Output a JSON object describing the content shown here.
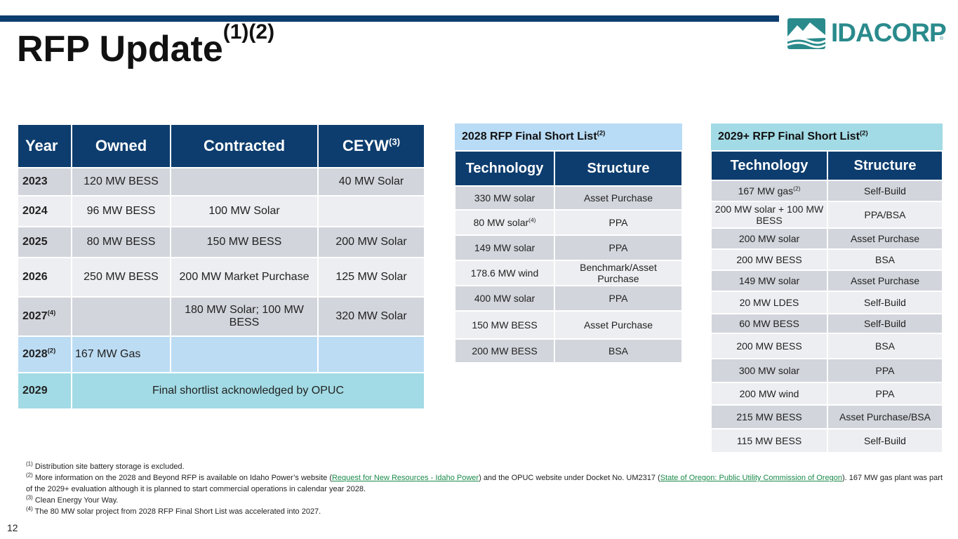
{
  "title": {
    "text": "RFP Update",
    "sup": "(1)(2)"
  },
  "logo": {
    "text": "IDACORP",
    "reg": "®"
  },
  "main_table": {
    "headers": {
      "year": "Year",
      "owned": "Owned",
      "contracted": "Contracted",
      "ceyw": "CEYW",
      "ceyw_sup": "(3)"
    },
    "rows": [
      {
        "year": "2023",
        "year_sup": "",
        "owned": "120 MW BESS",
        "contracted": "",
        "ceyw": "40 MW Solar"
      },
      {
        "year": "2024",
        "year_sup": "",
        "owned": "96 MW BESS",
        "contracted": "100 MW Solar",
        "ceyw": ""
      },
      {
        "year": "2025",
        "year_sup": "",
        "owned": "80 MW BESS",
        "contracted": "150 MW BESS",
        "ceyw": "200 MW Solar"
      },
      {
        "year": "2026",
        "year_sup": "",
        "owned": "250 MW BESS",
        "contracted": "200 MW Market Purchase",
        "ceyw": "125 MW Solar"
      },
      {
        "year": "2027",
        "year_sup": "(4)",
        "owned": "",
        "contracted": "180 MW Solar; 100 MW BESS",
        "ceyw": "320 MW Solar"
      },
      {
        "year": "2028",
        "year_sup": "(2)",
        "owned": "167 MW Gas",
        "contracted": "",
        "ceyw": ""
      }
    ],
    "final_row": {
      "year": "2029",
      "text": "Final shortlist acknowledged by OPUC"
    }
  },
  "shortlist_2028": {
    "caption": "2028 RFP Final Short List",
    "caption_sup": "(2)",
    "headers": {
      "technology": "Technology",
      "structure": "Structure"
    },
    "rows": [
      {
        "tech": "330 MW solar",
        "tech_sup": "",
        "structure": "Asset Purchase"
      },
      {
        "tech": "80 MW solar",
        "tech_sup": "(4)",
        "structure": "PPA"
      },
      {
        "tech": "149 MW solar",
        "tech_sup": "",
        "structure": "PPA"
      },
      {
        "tech": "178.6 MW wind",
        "tech_sup": "",
        "structure": "Benchmark/Asset Purchase"
      },
      {
        "tech": "400 MW solar",
        "tech_sup": "",
        "structure": "PPA"
      },
      {
        "tech": "150 MW BESS",
        "tech_sup": "",
        "structure": "Asset Purchase"
      },
      {
        "tech": "200 MW BESS",
        "tech_sup": "",
        "structure": "BSA"
      }
    ]
  },
  "shortlist_2029": {
    "caption": "2029+ RFP Final Short List",
    "caption_sup": "(2)",
    "headers": {
      "technology": "Technology",
      "structure": "Structure"
    },
    "rows": [
      {
        "tech": "167 MW gas",
        "tech_sup": "(2)",
        "structure": "Self-Build"
      },
      {
        "tech": "200 MW solar + 100 MW BESS",
        "tech_sup": "",
        "structure": "PPA/BSA"
      },
      {
        "tech": "200 MW solar",
        "tech_sup": "",
        "structure": "Asset Purchase"
      },
      {
        "tech": "200 MW BESS",
        "tech_sup": "",
        "structure": "BSA"
      },
      {
        "tech": "149 MW solar",
        "tech_sup": "",
        "structure": "Asset Purchase"
      },
      {
        "tech": "20 MW LDES",
        "tech_sup": "",
        "structure": "Self-Build"
      },
      {
        "tech": "60 MW BESS",
        "tech_sup": "",
        "structure": "Self-Build"
      },
      {
        "tech": "200 MW BESS",
        "tech_sup": "",
        "structure": "BSA"
      },
      {
        "tech": "300 MW solar",
        "tech_sup": "",
        "structure": "PPA"
      },
      {
        "tech": "200 MW wind",
        "tech_sup": "",
        "structure": "PPA"
      },
      {
        "tech": "215 MW BESS",
        "tech_sup": "",
        "structure": "Asset Purchase/BSA"
      },
      {
        "tech": "115 MW BESS",
        "tech_sup": "",
        "structure": "Self-Build"
      }
    ]
  },
  "footnotes": {
    "n1": {
      "sup": "(1)",
      "text": " Distribution site battery storage is excluded."
    },
    "n2": {
      "sup": "(2)",
      "text_a": " More information on the 2028 and Beyond RFP is available on Idaho Power’s website (",
      "link_a": "Request for New Resources - Idaho Power",
      "text_b": ") and the OPUC website under Docket No. UM2317 (",
      "link_b": "State of Oregon: Public Utility Commission of Oregon",
      "text_c": ").  167 MW gas plant was part of the 2029+ evaluation although it is planned to start commercial operations in calendar year 2028."
    },
    "n3": {
      "sup": "(3)",
      "text": " Clean Energy Your Way."
    },
    "n4": {
      "sup": "(4)",
      "text": " The 80 MW solar project from 2028 RFP Final Short List was accelerated into 2027."
    }
  },
  "page_number": "12",
  "colors": {
    "navy": "#0d3d6e",
    "gray_row": "#d2d5dc",
    "light_row": "#eceef1",
    "blue_row": "#bcdcf3",
    "teal_row": "#a2dbe5",
    "logo_teal": "#2a8a8c"
  }
}
